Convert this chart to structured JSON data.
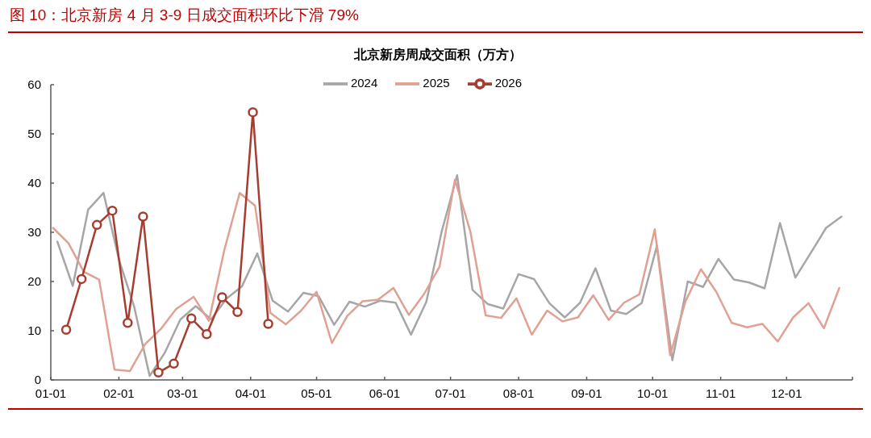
{
  "chart_data": {
    "type": "line",
    "title": "图 10：北京新房 4 月 3-9 日成交面积环比下滑 79%",
    "subtitle": "北京新房周成交面积（万方）",
    "xlim": [
      "--01-01",
      "--12-31"
    ],
    "xticks": [
      {
        "value": "--01-01",
        "label": "01-01"
      },
      {
        "value": "--02-01",
        "label": "02-01"
      },
      {
        "value": "--03-01",
        "label": "03-01"
      },
      {
        "value": "--04-01",
        "label": "04-01"
      },
      {
        "value": "--05-01",
        "label": "05-01"
      },
      {
        "value": "--06-01",
        "label": "06-01"
      },
      {
        "value": "--07-01",
        "label": "07-01"
      },
      {
        "value": "--08-01",
        "label": "08-01"
      },
      {
        "value": "--09-01",
        "label": "09-01"
      },
      {
        "value": "--10-01",
        "label": "10-01"
      },
      {
        "value": "--11-01",
        "label": "11-01"
      },
      {
        "value": "--12-01",
        "label": "12-01"
      },
      {
        "value": "--12-31",
        "label": null
      }
    ],
    "ylim": [
      0,
      60
    ],
    "yticks": [
      0,
      10,
      20,
      30,
      40,
      50,
      60
    ],
    "legend": "top",
    "series": [
      {
        "name": "2024",
        "color": "#a6a6a6",
        "x": [
          "--01-04",
          "--01-11",
          "--01-18",
          "--01-25",
          "--02-01",
          "--02-08",
          "--02-15",
          "--02-22",
          "--02-29",
          "--03-07",
          "--03-14",
          "--03-21",
          "--03-28",
          "--04-04",
          "--04-11",
          "--04-18",
          "--04-25",
          "--05-02",
          "--05-09",
          "--05-16",
          "--05-23",
          "--05-30",
          "--06-06",
          "--06-13",
          "--06-20",
          "--06-27",
          "--07-04",
          "--07-11",
          "--07-18",
          "--07-25",
          "--08-01",
          "--08-08",
          "--08-15",
          "--08-22",
          "--08-29",
          "--09-05",
          "--09-12",
          "--09-19",
          "--09-26",
          "--10-03",
          "--10-10",
          "--10-17",
          "--10-24",
          "--10-31",
          "--11-07",
          "--11-14",
          "--11-21",
          "--11-28",
          "--12-05",
          "--12-12",
          "--12-19",
          "--12-26"
        ],
        "values": [
          28.1,
          19.1,
          34.6,
          38.0,
          24.5,
          14.8,
          0.8,
          5.6,
          12.3,
          15.0,
          12.3,
          16.5,
          19.0,
          25.7,
          16.1,
          13.9,
          17.7,
          17.0,
          11.2,
          15.9,
          14.9,
          16.1,
          15.7,
          9.2,
          15.9,
          30.2,
          41.6,
          18.3,
          15.4,
          14.5,
          21.5,
          20.5,
          15.6,
          12.7,
          15.7,
          22.7,
          14.1,
          13.4,
          15.6,
          27.3,
          4.0,
          20.0,
          18.9,
          24.6,
          20.4,
          19.8,
          18.6,
          31.9,
          20.8,
          25.8,
          30.9,
          33.2
        ]
      },
      {
        "name": "2025",
        "color": "#e0a193",
        "x": [
          "--01-02",
          "--01-09",
          "--01-16",
          "--01-23",
          "--01-30",
          "--02-06",
          "--02-13",
          "--02-20",
          "--02-27",
          "--03-06",
          "--03-13",
          "--03-20",
          "--03-27",
          "--04-03",
          "--04-10",
          "--04-17",
          "--04-24",
          "--05-01",
          "--05-08",
          "--05-15",
          "--05-22",
          "--05-29",
          "--06-05",
          "--06-12",
          "--06-19",
          "--06-26",
          "--07-03",
          "--07-10",
          "--07-17",
          "--07-24",
          "--07-31",
          "--08-07",
          "--08-14",
          "--08-21",
          "--08-28",
          "--09-04",
          "--09-11",
          "--09-18",
          "--09-25",
          "--10-02",
          "--10-09",
          "--10-16",
          "--10-23",
          "--10-30",
          "--11-06",
          "--11-13",
          "--11-20",
          "--11-27",
          "--12-04",
          "--12-11",
          "--12-18",
          "--12-25"
        ],
        "values": [
          30.9,
          27.8,
          22.0,
          20.4,
          2.1,
          1.8,
          7.3,
          10.3,
          14.4,
          16.9,
          12.0,
          26.4,
          38.0,
          35.4,
          13.6,
          11.3,
          14.1,
          17.9,
          7.5,
          13.0,
          16.0,
          16.3,
          18.7,
          13.2,
          17.5,
          23.0,
          40.7,
          30.2,
          13.1,
          12.6,
          16.6,
          9.2,
          14.1,
          11.9,
          12.7,
          17.2,
          12.2,
          15.7,
          17.4,
          30.6,
          5.0,
          16.0,
          22.5,
          17.9,
          11.6,
          10.7,
          11.4,
          7.8,
          12.7,
          15.6,
          10.5,
          18.7
        ]
      },
      {
        "name": "2026",
        "color": "#a53e30",
        "marker": "circle",
        "x": [
          "--01-08",
          "--01-15",
          "--01-22",
          "--01-29",
          "--02-05",
          "--02-12",
          "--02-19",
          "--02-26",
          "--03-05",
          "--03-12",
          "--03-19",
          "--03-26",
          "--04-02",
          "--04-09"
        ],
        "values": [
          10.2,
          20.5,
          31.5,
          34.4,
          11.6,
          33.2,
          1.5,
          3.3,
          12.5,
          9.3,
          16.8,
          13.8,
          54.4,
          11.4
        ]
      }
    ]
  }
}
